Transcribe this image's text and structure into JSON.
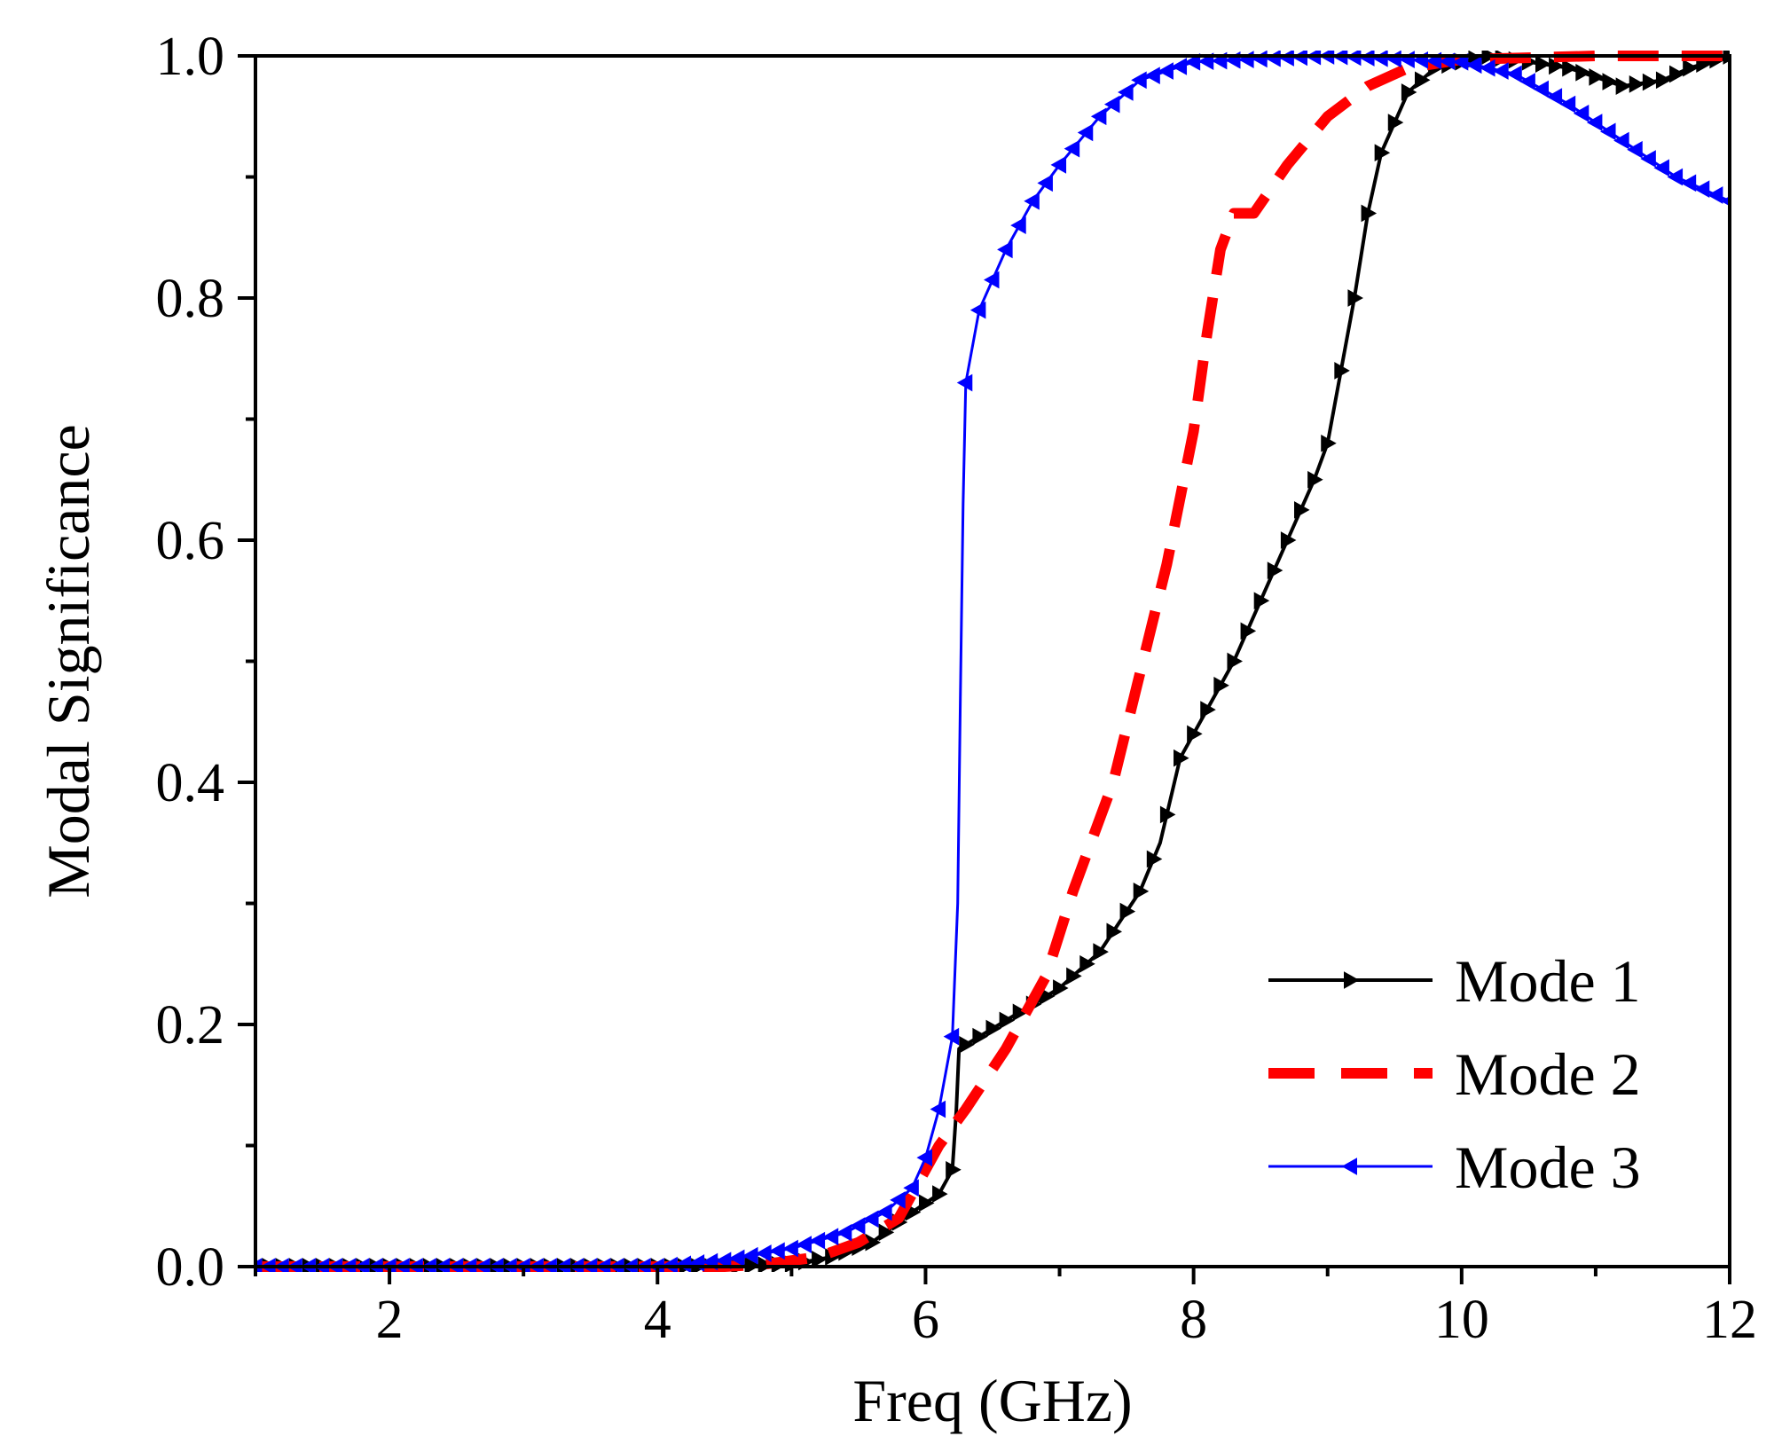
{
  "chart_data": {
    "type": "line",
    "title": "",
    "xlabel": "Freq (GHz)",
    "ylabel": "Modal Significance",
    "xlim": [
      1,
      12
    ],
    "ylim": [
      0,
      1.0
    ],
    "x_ticks": [
      2,
      4,
      6,
      8,
      10,
      12
    ],
    "x_tick_labels": [
      "2",
      "4",
      "6",
      "8",
      "10",
      "12"
    ],
    "y_ticks": [
      0,
      0.2,
      0.4,
      0.6,
      0.8,
      1.0
    ],
    "y_tick_labels": [
      "0.0",
      "0.2",
      "0.4",
      "0.6",
      "0.8",
      "1.0"
    ],
    "grid": false,
    "legend_position": "bottom-right",
    "series": [
      {
        "name": "Mode 1",
        "color": "#000000",
        "line_style": "solid",
        "marker": "triangle-right",
        "points": [
          [
            1,
            0
          ],
          [
            4.5,
            0
          ],
          [
            5.0,
            0.002
          ],
          [
            5.3,
            0.008
          ],
          [
            5.6,
            0.02
          ],
          [
            5.9,
            0.045
          ],
          [
            6.1,
            0.06
          ],
          [
            6.2,
            0.08
          ],
          [
            6.23,
            0.13
          ],
          [
            6.25,
            0.18
          ],
          [
            6.4,
            0.19
          ],
          [
            6.7,
            0.21
          ],
          [
            7.0,
            0.23
          ],
          [
            7.3,
            0.26
          ],
          [
            7.6,
            0.31
          ],
          [
            7.75,
            0.35
          ],
          [
            7.9,
            0.42
          ],
          [
            8.1,
            0.46
          ],
          [
            8.3,
            0.5
          ],
          [
            8.5,
            0.55
          ],
          [
            8.7,
            0.6
          ],
          [
            8.9,
            0.65
          ],
          [
            9.0,
            0.68
          ],
          [
            9.1,
            0.74
          ],
          [
            9.2,
            0.8
          ],
          [
            9.3,
            0.87
          ],
          [
            9.4,
            0.92
          ],
          [
            9.6,
            0.97
          ],
          [
            9.8,
            0.99
          ],
          [
            10.2,
            1.0
          ],
          [
            10.8,
            0.99
          ],
          [
            11.2,
            0.975
          ],
          [
            11.5,
            0.98
          ],
          [
            11.7,
            0.99
          ],
          [
            12,
            1.0
          ]
        ]
      },
      {
        "name": "Mode 2",
        "color": "#ff0000",
        "line_style": "dashed",
        "marker": "none",
        "points": [
          [
            1,
            0
          ],
          [
            4.5,
            0
          ],
          [
            4.8,
            0.002
          ],
          [
            5.2,
            0.008
          ],
          [
            5.5,
            0.02
          ],
          [
            5.8,
            0.04
          ],
          [
            6.0,
            0.08
          ],
          [
            6.1,
            0.1
          ],
          [
            6.3,
            0.13
          ],
          [
            6.6,
            0.18
          ],
          [
            6.9,
            0.24
          ],
          [
            7.1,
            0.31
          ],
          [
            7.4,
            0.4
          ],
          [
            7.6,
            0.49
          ],
          [
            7.8,
            0.58
          ],
          [
            8.0,
            0.69
          ],
          [
            8.1,
            0.77
          ],
          [
            8.2,
            0.84
          ],
          [
            8.3,
            0.87
          ],
          [
            8.45,
            0.87
          ],
          [
            8.7,
            0.91
          ],
          [
            9.0,
            0.95
          ],
          [
            9.3,
            0.975
          ],
          [
            9.6,
            0.99
          ],
          [
            10.0,
            0.997
          ],
          [
            11.0,
            1.0
          ],
          [
            12,
            1.0
          ]
        ]
      },
      {
        "name": "Mode 3",
        "color": "#0000ff",
        "line_style": "solid",
        "marker": "triangle-left",
        "points": [
          [
            1,
            0
          ],
          [
            4.0,
            0
          ],
          [
            4.5,
            0.005
          ],
          [
            5.0,
            0.015
          ],
          [
            5.4,
            0.028
          ],
          [
            5.7,
            0.045
          ],
          [
            5.9,
            0.065
          ],
          [
            6.0,
            0.09
          ],
          [
            6.1,
            0.13
          ],
          [
            6.2,
            0.19
          ],
          [
            6.24,
            0.3
          ],
          [
            6.26,
            0.47
          ],
          [
            6.28,
            0.63
          ],
          [
            6.3,
            0.73
          ],
          [
            6.4,
            0.79
          ],
          [
            6.6,
            0.84
          ],
          [
            6.8,
            0.88
          ],
          [
            7.0,
            0.91
          ],
          [
            7.3,
            0.95
          ],
          [
            7.6,
            0.98
          ],
          [
            8.0,
            0.995
          ],
          [
            9.0,
            1.0
          ],
          [
            10.0,
            0.995
          ],
          [
            10.4,
            0.985
          ],
          [
            10.8,
            0.96
          ],
          [
            11.2,
            0.93
          ],
          [
            11.6,
            0.9
          ],
          [
            12,
            0.88
          ]
        ]
      }
    ]
  }
}
